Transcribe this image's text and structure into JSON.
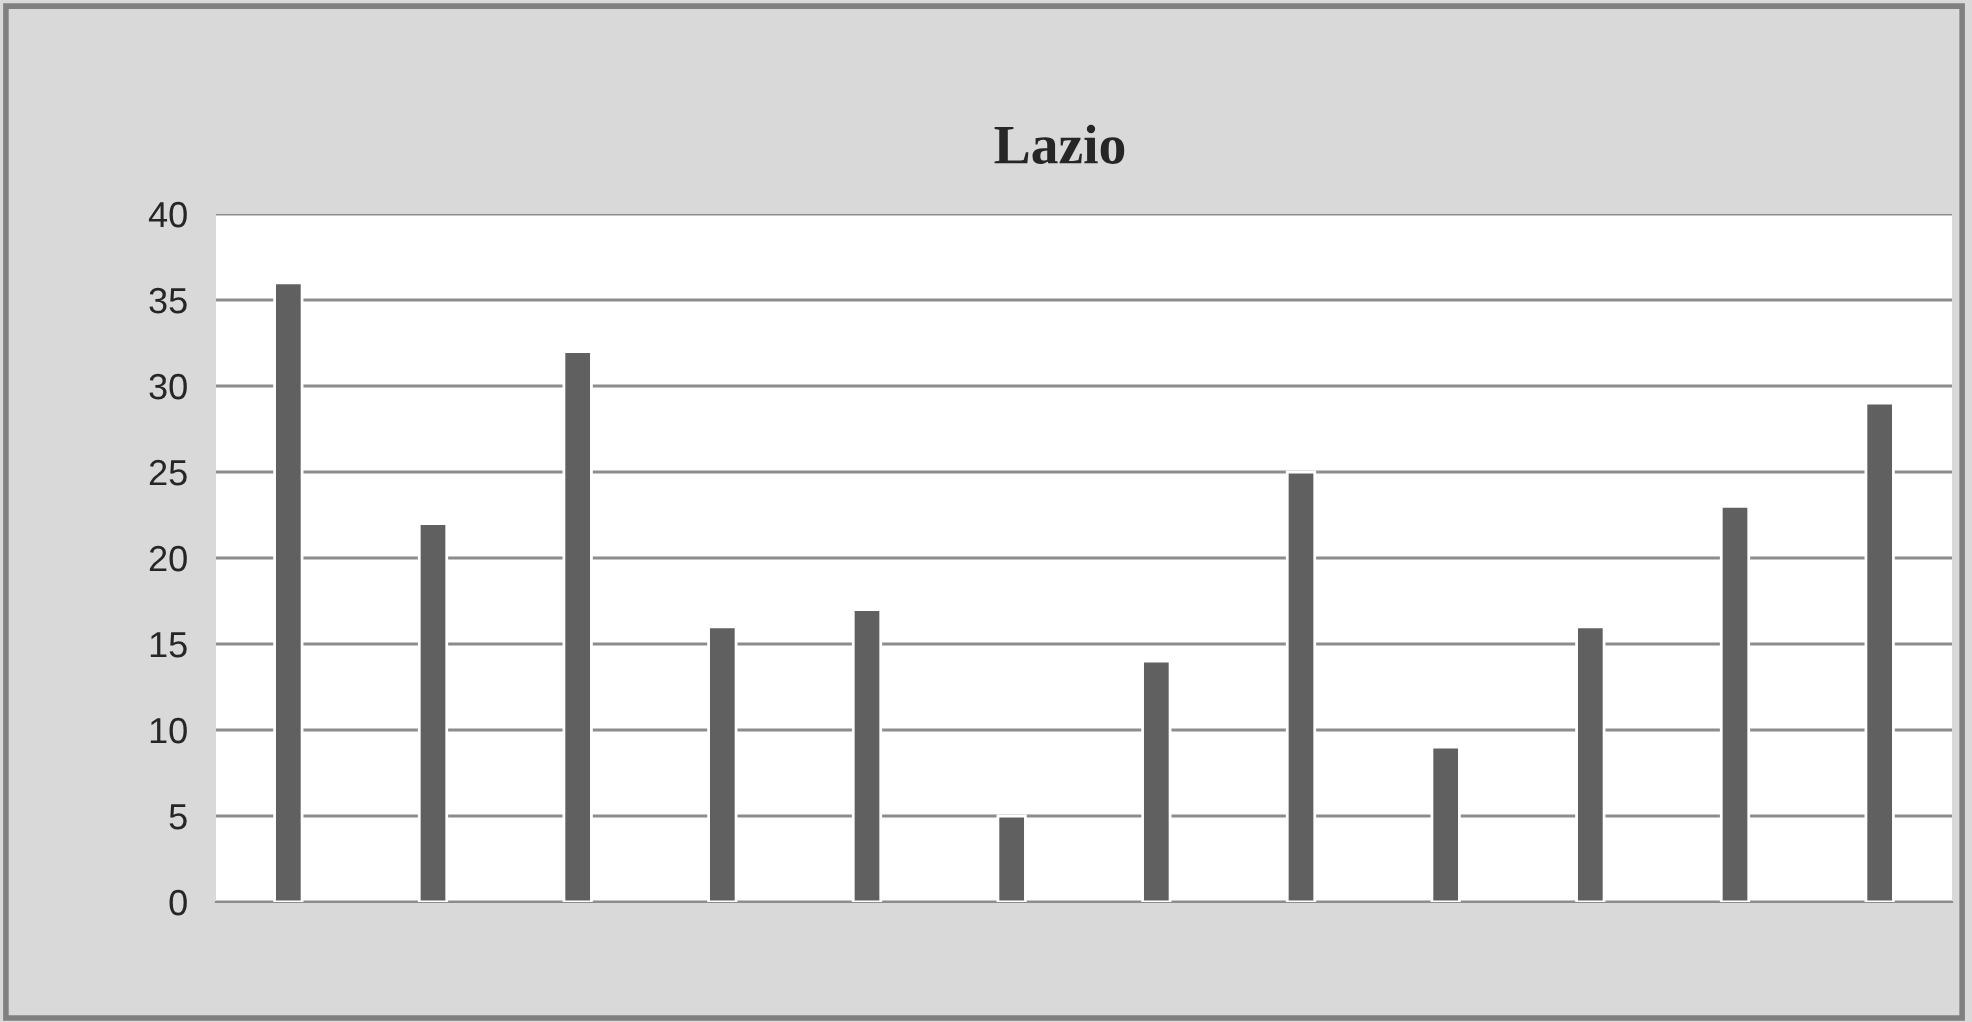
{
  "chart_data": {
    "type": "bar",
    "title": "Lazio",
    "categories": [
      null,
      null,
      null,
      null,
      null,
      null,
      null,
      null,
      null,
      null,
      null,
      null
    ],
    "values": [
      36,
      22,
      32,
      16,
      17,
      5,
      14,
      25,
      9,
      16,
      23,
      29
    ],
    "color": "#606060",
    "ylim": [
      0,
      40
    ],
    "yticks": [
      0,
      5,
      10,
      15,
      20,
      25,
      30,
      35,
      40
    ],
    "grid": "y"
  }
}
